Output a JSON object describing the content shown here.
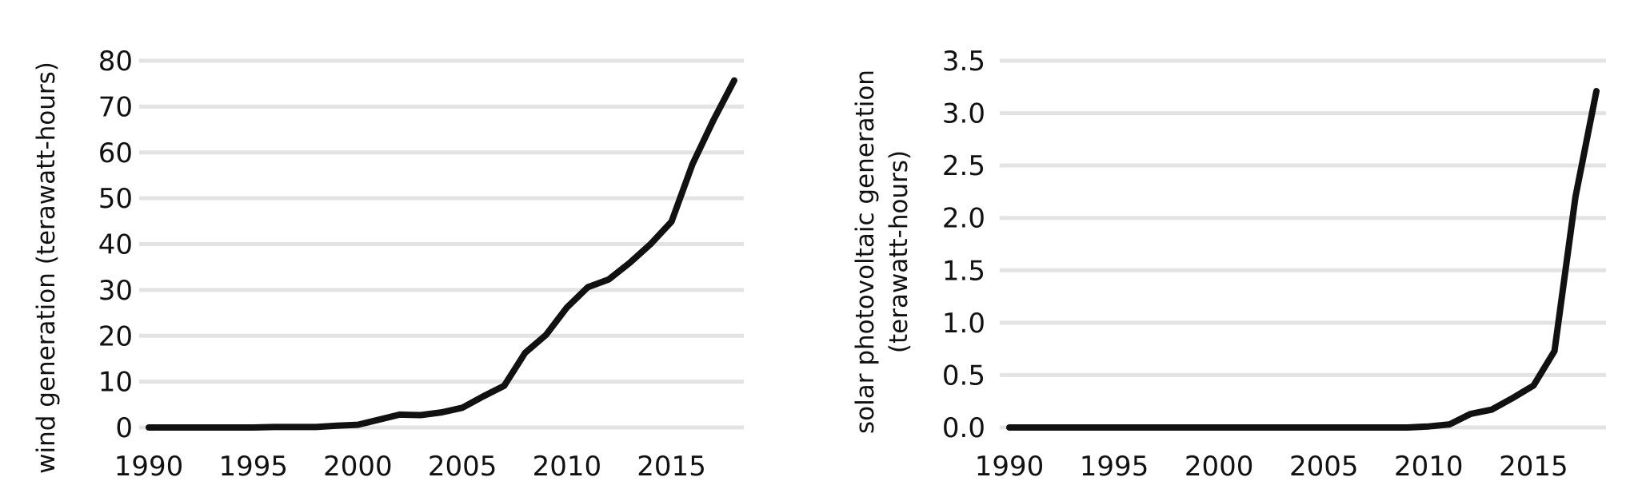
{
  "chart_data": [
    {
      "type": "line",
      "title": "",
      "xlabel": "",
      "ylabel": "wind generation (terawatt-hours)",
      "ylabel_lines": [
        "wind generation (terawatt-hours)"
      ],
      "xlim": [
        1990,
        2018
      ],
      "ylim": [
        0,
        80
      ],
      "xticks": [
        1990,
        1995,
        2000,
        2005,
        2010,
        2015
      ],
      "xtick_labels": [
        "1990",
        "1995",
        "2000",
        "2005",
        "2010",
        "2015"
      ],
      "yticks": [
        0,
        10,
        20,
        30,
        40,
        50,
        60,
        70,
        80
      ],
      "ytick_labels": [
        "0",
        "10",
        "20",
        "30",
        "40",
        "50",
        "60",
        "70",
        "80"
      ],
      "grid": true,
      "line_color": "#111111",
      "grid_color": "#e3e3e3",
      "series": [
        {
          "x": [
            1990,
            1991,
            1992,
            1993,
            1994,
            1995,
            1996,
            1997,
            1998,
            1999,
            2000,
            2001,
            2002,
            2003,
            2004,
            2005,
            2006,
            2007,
            2008,
            2009,
            2010,
            2011,
            2012,
            2013,
            2014,
            2015,
            2016,
            2017,
            2018
          ],
          "values": [
            0,
            0,
            0,
            0,
            0,
            0,
            0.1,
            0.1,
            0.1,
            0.4,
            0.6,
            1.7,
            2.8,
            2.7,
            3.3,
            4.3,
            6.8,
            9.1,
            16.3,
            20.2,
            26.2,
            30.6,
            32.3,
            35.9,
            40.0,
            44.9,
            57.4,
            67.0,
            75.7
          ]
        }
      ]
    },
    {
      "type": "line",
      "title": "",
      "xlabel": "",
      "ylabel": "solar photovoltaic generation (terawatt-hours)",
      "ylabel_lines": [
        "solar photovoltaic generation",
        "(terawatt-hours)"
      ],
      "xlim": [
        1990,
        2018
      ],
      "ylim": [
        0,
        3.5
      ],
      "xticks": [
        1990,
        1995,
        2000,
        2005,
        2010,
        2015
      ],
      "xtick_labels": [
        "1990",
        "1995",
        "2000",
        "2005",
        "2010",
        "2015"
      ],
      "yticks": [
        0,
        0.5,
        1.0,
        1.5,
        2.0,
        2.5,
        3.0,
        3.5
      ],
      "ytick_labels": [
        "0.0",
        "0.5",
        "1.0",
        "1.5",
        "2.0",
        "2.5",
        "3.0",
        "3.5"
      ],
      "grid": true,
      "line_color": "#111111",
      "grid_color": "#e3e3e3",
      "series": [
        {
          "x": [
            1990,
            1991,
            1992,
            1993,
            1994,
            1995,
            1996,
            1997,
            1998,
            1999,
            2000,
            2001,
            2002,
            2003,
            2004,
            2005,
            2006,
            2007,
            2008,
            2009,
            2010,
            2011,
            2012,
            2013,
            2014,
            2015,
            2016,
            2017,
            2018
          ],
          "values": [
            0,
            0,
            0,
            0,
            0,
            0,
            0,
            0,
            0,
            0,
            0,
            0,
            0,
            0,
            0,
            0,
            0,
            0,
            0,
            0,
            0.01,
            0.03,
            0.13,
            0.17,
            0.28,
            0.4,
            0.73,
            2.2,
            3.21
          ]
        }
      ]
    }
  ]
}
